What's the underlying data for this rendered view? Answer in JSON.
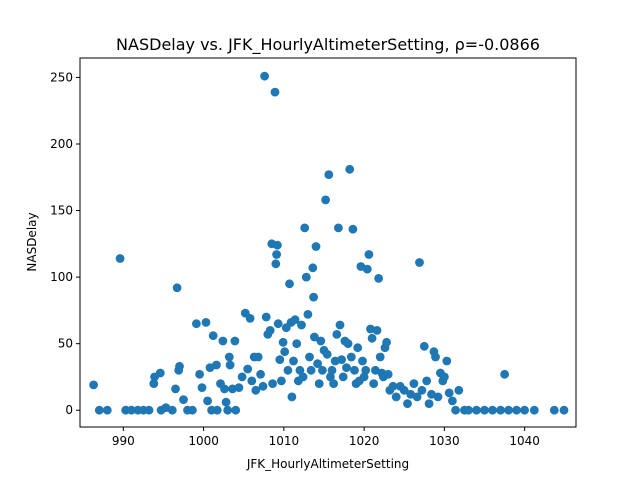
{
  "chart_data": {
    "type": "scatter",
    "title": "NASDelay vs. JFK_HourlyAltimeterSetting, ρ=-0.0866",
    "xlabel": "JFK_HourlyAltimeterSetting",
    "ylabel": "NASDelay",
    "xlim": [
      984.6,
      1046.4
    ],
    "ylim": [
      -12.6,
      264.6
    ],
    "xticks": [
      990,
      1000,
      1010,
      1020,
      1030,
      1040
    ],
    "yticks": [
      0,
      50,
      100,
      150,
      200,
      250
    ],
    "grid": false,
    "color": "#1f77b4",
    "series": [
      {
        "points": [
          [
            986.3,
            19
          ],
          [
            987.0,
            0
          ],
          [
            988.0,
            0
          ],
          [
            989.6,
            114
          ],
          [
            990.3,
            0
          ],
          [
            991.0,
            0
          ],
          [
            991.8,
            0
          ],
          [
            992.5,
            0
          ],
          [
            993.2,
            0
          ],
          [
            993.8,
            20
          ],
          [
            993.9,
            25
          ],
          [
            994.6,
            28
          ],
          [
            994.7,
            0
          ],
          [
            995.3,
            2
          ],
          [
            996.1,
            0
          ],
          [
            996.5,
            16
          ],
          [
            996.7,
            92
          ],
          [
            996.9,
            30
          ],
          [
            997.0,
            33
          ],
          [
            997.5,
            8
          ],
          [
            998.0,
            0
          ],
          [
            998.6,
            0
          ],
          [
            999.1,
            65
          ],
          [
            999.5,
            27
          ],
          [
            999.8,
            17
          ],
          [
            1000.3,
            66
          ],
          [
            1000.5,
            7
          ],
          [
            1000.8,
            32
          ],
          [
            1001.0,
            0
          ],
          [
            1001.2,
            56
          ],
          [
            1001.6,
            34
          ],
          [
            1001.7,
            0
          ],
          [
            1002.1,
            20
          ],
          [
            1002.4,
            52
          ],
          [
            1002.6,
            16
          ],
          [
            1002.8,
            6
          ],
          [
            1003.0,
            0
          ],
          [
            1003.2,
            40
          ],
          [
            1003.3,
            34
          ],
          [
            1003.6,
            16
          ],
          [
            1003.9,
            52
          ],
          [
            1004.0,
            0
          ],
          [
            1004.4,
            17
          ],
          [
            1004.8,
            25
          ],
          [
            1005.2,
            73
          ],
          [
            1005.5,
            31
          ],
          [
            1005.8,
            69
          ],
          [
            1006.0,
            22
          ],
          [
            1006.3,
            40
          ],
          [
            1006.5,
            15
          ],
          [
            1006.8,
            40
          ],
          [
            1007.1,
            27
          ],
          [
            1007.4,
            18
          ],
          [
            1007.6,
            251
          ],
          [
            1007.8,
            70
          ],
          [
            1008.0,
            57
          ],
          [
            1008.3,
            60
          ],
          [
            1008.5,
            125
          ],
          [
            1008.6,
            20
          ],
          [
            1008.9,
            239
          ],
          [
            1009.0,
            110
          ],
          [
            1009.1,
            117
          ],
          [
            1009.2,
            124
          ],
          [
            1009.3,
            65
          ],
          [
            1009.5,
            38
          ],
          [
            1009.7,
            22
          ],
          [
            1009.9,
            51
          ],
          [
            1010.1,
            44
          ],
          [
            1010.3,
            62
          ],
          [
            1010.5,
            30
          ],
          [
            1010.7,
            95
          ],
          [
            1010.9,
            66
          ],
          [
            1011.0,
            10
          ],
          [
            1011.2,
            37
          ],
          [
            1011.4,
            68
          ],
          [
            1011.6,
            50
          ],
          [
            1011.8,
            22
          ],
          [
            1012.0,
            30
          ],
          [
            1012.2,
            64
          ],
          [
            1012.4,
            25
          ],
          [
            1012.6,
            137
          ],
          [
            1012.8,
            100
          ],
          [
            1013.0,
            72
          ],
          [
            1013.2,
            40
          ],
          [
            1013.4,
            30
          ],
          [
            1013.6,
            107
          ],
          [
            1013.7,
            85
          ],
          [
            1013.8,
            55
          ],
          [
            1014.0,
            123
          ],
          [
            1014.2,
            35
          ],
          [
            1014.4,
            20
          ],
          [
            1014.6,
            52
          ],
          [
            1014.8,
            30
          ],
          [
            1015.0,
            45
          ],
          [
            1015.2,
            158
          ],
          [
            1015.4,
            42
          ],
          [
            1015.6,
            177
          ],
          [
            1015.8,
            25
          ],
          [
            1016.0,
            30
          ],
          [
            1016.2,
            20
          ],
          [
            1016.4,
            37
          ],
          [
            1016.6,
            57
          ],
          [
            1016.8,
            137
          ],
          [
            1017.0,
            64
          ],
          [
            1017.2,
            38
          ],
          [
            1017.4,
            25
          ],
          [
            1017.6,
            52
          ],
          [
            1017.8,
            32
          ],
          [
            1018.0,
            50
          ],
          [
            1018.2,
            181
          ],
          [
            1018.4,
            40
          ],
          [
            1018.6,
            136
          ],
          [
            1018.8,
            30
          ],
          [
            1019.0,
            20
          ],
          [
            1019.2,
            47
          ],
          [
            1019.4,
            22
          ],
          [
            1019.6,
            108
          ],
          [
            1019.8,
            37
          ],
          [
            1020.0,
            25
          ],
          [
            1020.2,
            30
          ],
          [
            1020.4,
            106
          ],
          [
            1020.6,
            117
          ],
          [
            1020.8,
            61
          ],
          [
            1021.0,
            54
          ],
          [
            1021.2,
            20
          ],
          [
            1021.4,
            30
          ],
          [
            1021.6,
            60
          ],
          [
            1021.8,
            99
          ],
          [
            1022.0,
            40
          ],
          [
            1022.2,
            28
          ],
          [
            1022.4,
            25
          ],
          [
            1022.6,
            47
          ],
          [
            1022.8,
            51
          ],
          [
            1023.0,
            27
          ],
          [
            1023.2,
            15
          ],
          [
            1023.6,
            18
          ],
          [
            1024.0,
            10
          ],
          [
            1024.5,
            18
          ],
          [
            1025.0,
            15
          ],
          [
            1025.4,
            5
          ],
          [
            1025.8,
            12
          ],
          [
            1026.2,
            20
          ],
          [
            1026.6,
            10
          ],
          [
            1026.9,
            111
          ],
          [
            1027.2,
            15
          ],
          [
            1027.5,
            48
          ],
          [
            1027.8,
            22
          ],
          [
            1028.1,
            5
          ],
          [
            1028.4,
            12
          ],
          [
            1028.7,
            44
          ],
          [
            1028.9,
            40
          ],
          [
            1029.2,
            10
          ],
          [
            1029.5,
            28
          ],
          [
            1029.8,
            22
          ],
          [
            1030.0,
            25
          ],
          [
            1030.3,
            37
          ],
          [
            1030.6,
            13
          ],
          [
            1031.0,
            7
          ],
          [
            1031.4,
            0
          ],
          [
            1031.8,
            15
          ],
          [
            1032.5,
            0
          ],
          [
            1033.0,
            0
          ],
          [
            1034.0,
            0
          ],
          [
            1035.0,
            0
          ],
          [
            1036.0,
            0
          ],
          [
            1037.0,
            0
          ],
          [
            1037.5,
            27
          ],
          [
            1038.0,
            0
          ],
          [
            1039.0,
            0
          ],
          [
            1040.0,
            0
          ],
          [
            1041.2,
            0
          ],
          [
            1043.7,
            0
          ],
          [
            1044.9,
            0
          ]
        ]
      }
    ]
  }
}
